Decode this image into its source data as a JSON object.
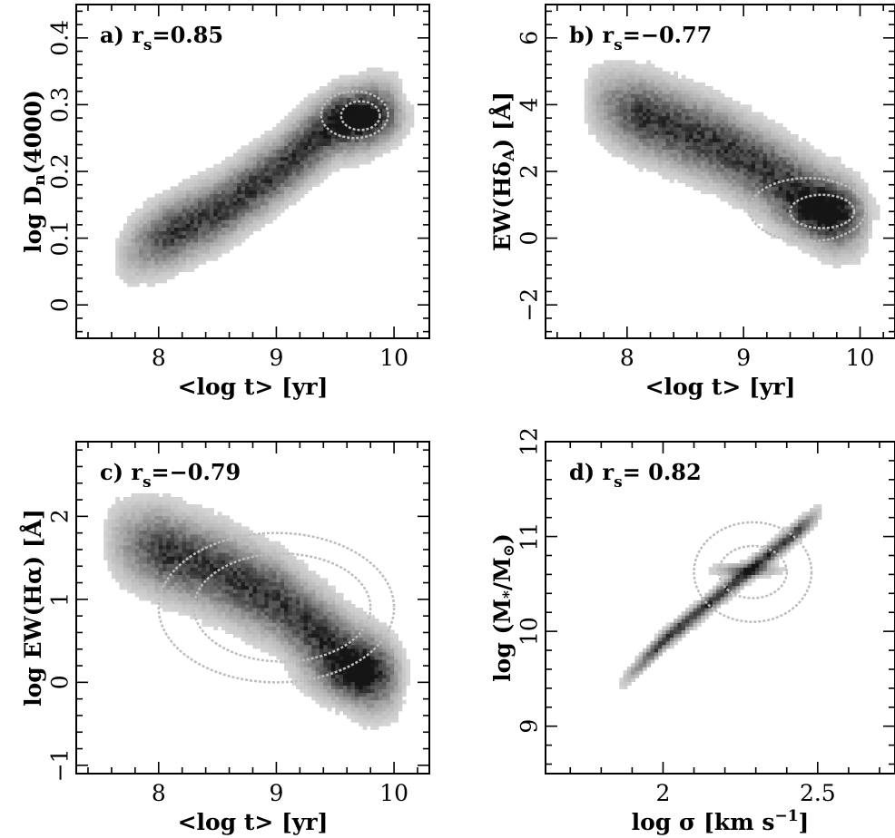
{
  "chart_data": [
    {
      "panel": "a",
      "type": "heatmap",
      "annotation": {
        "prefix": "a) r",
        "sub": "s",
        "value": "=0.85"
      },
      "xlabel": "<log t> [yr]",
      "ylabel": {
        "main": "log D",
        "sub": "n",
        "tail": "(4000)"
      },
      "xlim": [
        7.3,
        10.3
      ],
      "ylim": [
        -0.05,
        0.45
      ],
      "xticks": [
        "8",
        "9",
        "10"
      ],
      "yticks": [
        "0",
        "0.1",
        "0.2",
        "0.3",
        "0.4"
      ],
      "grid": false,
      "ridge": [
        [
          7.6,
          0.07
        ],
        [
          8.0,
          0.1
        ],
        [
          8.5,
          0.14
        ],
        [
          9.0,
          0.2
        ],
        [
          9.5,
          0.27
        ],
        [
          10.1,
          0.3
        ]
      ],
      "width": 0.03,
      "peak": [
        9.72,
        0.28
      ],
      "contours": [
        [
          9.38,
          9.95,
          0.25,
          0.32
        ],
        [
          9.55,
          9.88,
          0.262,
          0.305
        ]
      ]
    },
    {
      "panel": "b",
      "type": "heatmap",
      "annotation": {
        "prefix": "b) r",
        "sub": "s",
        "value": "=−0.77"
      },
      "xlabel": "<log t> [yr]",
      "ylabel": {
        "main": "EW(Hδ",
        "sub": "A",
        "tail": ") [Å]"
      },
      "xlim": [
        7.3,
        10.3
      ],
      "ylim": [
        -3,
        7
      ],
      "xticks": [
        "8",
        "9",
        "10"
      ],
      "yticks": [
        "−2",
        "0",
        "2",
        "4",
        "6"
      ],
      "grid": false,
      "ridge": [
        [
          7.6,
          4.2
        ],
        [
          8.2,
          3.6
        ],
        [
          8.8,
          2.8
        ],
        [
          9.3,
          1.8
        ],
        [
          9.7,
          0.9
        ],
        [
          10.1,
          0.4
        ]
      ],
      "width": 0.7,
      "peak": [
        9.68,
        0.8
      ],
      "contours": [
        [
          9.05,
          10.05,
          -0.1,
          1.8
        ],
        [
          9.4,
          9.95,
          0.3,
          1.3
        ]
      ]
    },
    {
      "panel": "c",
      "type": "heatmap",
      "annotation": {
        "prefix": "c) r",
        "sub": "s",
        "value": "=−0.79"
      },
      "xlabel": "<log t> [yr]",
      "ylabel": {
        "main": "log EW(Hα) [Å]",
        "sub": "",
        "tail": ""
      },
      "xlim": [
        7.3,
        10.3
      ],
      "ylim": [
        -1.1,
        2.9
      ],
      "xticks": [
        "8",
        "9",
        "10"
      ],
      "yticks": [
        "−1",
        "0",
        "1",
        "2"
      ],
      "grid": false,
      "ridge": [
        [
          7.5,
          1.75
        ],
        [
          8.0,
          1.6
        ],
        [
          8.5,
          1.35
        ],
        [
          9.0,
          1.0
        ],
        [
          9.4,
          0.55
        ],
        [
          9.7,
          0.2
        ],
        [
          10.1,
          0.0
        ]
      ],
      "width": 0.3,
      "peak": [
        9.65,
        0.12
      ],
      "contours": [
        [
          8.0,
          10.0,
          0.0,
          1.8
        ],
        [
          8.3,
          9.8,
          0.25,
          1.55
        ]
      ]
    },
    {
      "panel": "d",
      "type": "heatmap",
      "annotation": {
        "prefix": "d) r",
        "sub": "s",
        "value": "= 0.82"
      },
      "xlabel": {
        "main": "log σ [km s",
        "sup": "−1",
        "tail": "]"
      },
      "ylabel": {
        "main": "log (M",
        "sub": "*",
        "mid": "/M",
        "sub2": "⊙",
        "tail": ")"
      },
      "xlim": [
        1.62,
        2.75
      ],
      "ylim": [
        8.5,
        12.0
      ],
      "xticks": [
        "2",
        "2.5"
      ],
      "yticks": [
        "9",
        "10",
        "11",
        "12"
      ],
      "grid": false,
      "ridge": [
        [
          1.85,
          9.4
        ],
        [
          2.0,
          9.9
        ],
        [
          2.15,
          10.3
        ],
        [
          2.3,
          10.7
        ],
        [
          2.45,
          11.1
        ],
        [
          2.52,
          11.3
        ]
      ],
      "width": 0.06,
      "peak": [
        2.27,
        10.65
      ],
      "contours": [
        [
          2.1,
          2.48,
          10.1,
          11.15
        ],
        [
          2.18,
          2.4,
          10.35,
          10.9
        ]
      ]
    }
  ]
}
